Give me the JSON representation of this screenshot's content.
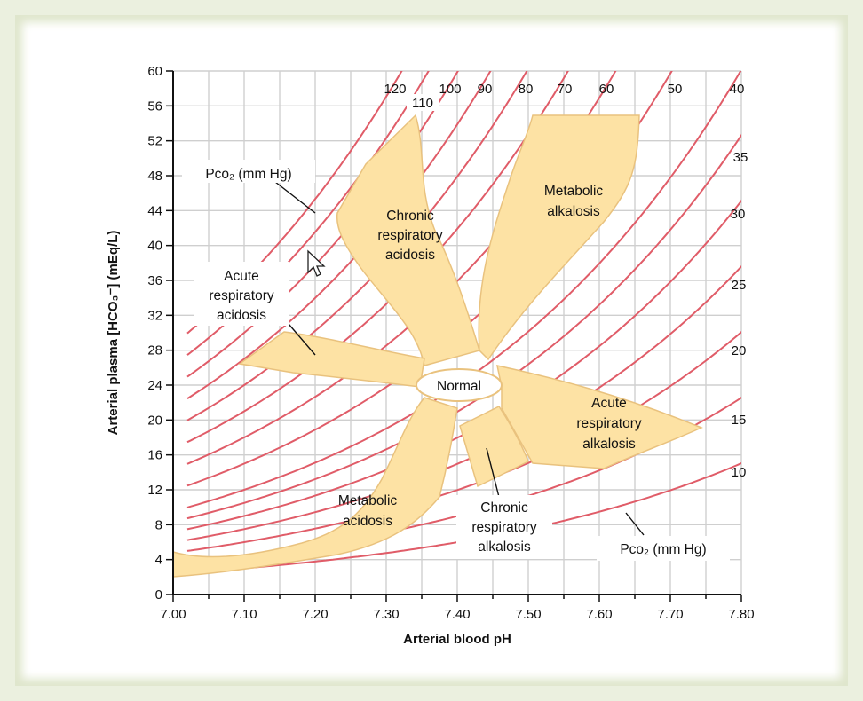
{
  "chart_data": {
    "type": "line",
    "xlabel": "Arterial blood pH",
    "ylabel": "Arterial plasma [HCO₃⁻] (mEq/L)",
    "x_ticks": [
      "7.00",
      "7.10",
      "7.20",
      "7.30",
      "7.40",
      "7.50",
      "7.60",
      "7.70",
      "7.80"
    ],
    "y_ticks": [
      "0",
      "4",
      "8",
      "12",
      "16",
      "20",
      "24",
      "28",
      "32",
      "36",
      "40",
      "44",
      "48",
      "52",
      "56",
      "60"
    ],
    "xlim": [
      7.0,
      7.8
    ],
    "ylim": [
      0,
      60
    ],
    "grid": true,
    "isobar_labels": [
      "120",
      "110",
      "100",
      "90",
      "80",
      "70",
      "60",
      "50",
      "40",
      "35",
      "30",
      "25",
      "20",
      "15",
      "10"
    ],
    "isobars_pco2": [
      10,
      15,
      20,
      25,
      30,
      35,
      40,
      50,
      60,
      70,
      80,
      90,
      100,
      110,
      120
    ],
    "pco2_label_top": "Pco₂ (mm Hg)",
    "pco2_label_bottom": "Pco₂ (mm Hg)",
    "regions": [
      {
        "name": "Normal",
        "label": "Normal"
      },
      {
        "name": "chronic-respiratory-acidosis",
        "label_lines": [
          "Chronic",
          "respiratory",
          "acidosis"
        ]
      },
      {
        "name": "metabolic-alkalosis",
        "label_lines": [
          "Metabolic",
          "alkalosis"
        ]
      },
      {
        "name": "acute-respiratory-acidosis",
        "label_lines": [
          "Acute",
          "respiratory",
          "acidosis"
        ]
      },
      {
        "name": "acute-respiratory-alkalosis",
        "label_lines": [
          "Acute",
          "respiratory",
          "alkalosis"
        ]
      },
      {
        "name": "metabolic-acidosis",
        "label_lines": [
          "Metabolic",
          "acidosis"
        ]
      },
      {
        "name": "chronic-respiratory-alkalosis",
        "label_lines": [
          "Chronic",
          "respiratory",
          "alkalosis"
        ]
      }
    ],
    "colors": {
      "isobar": "#e05c68",
      "region_fill": "#fde2a4",
      "region_stroke": "#e9c27e",
      "grid": "#cfcfcf",
      "background": "#ebf0df"
    }
  }
}
